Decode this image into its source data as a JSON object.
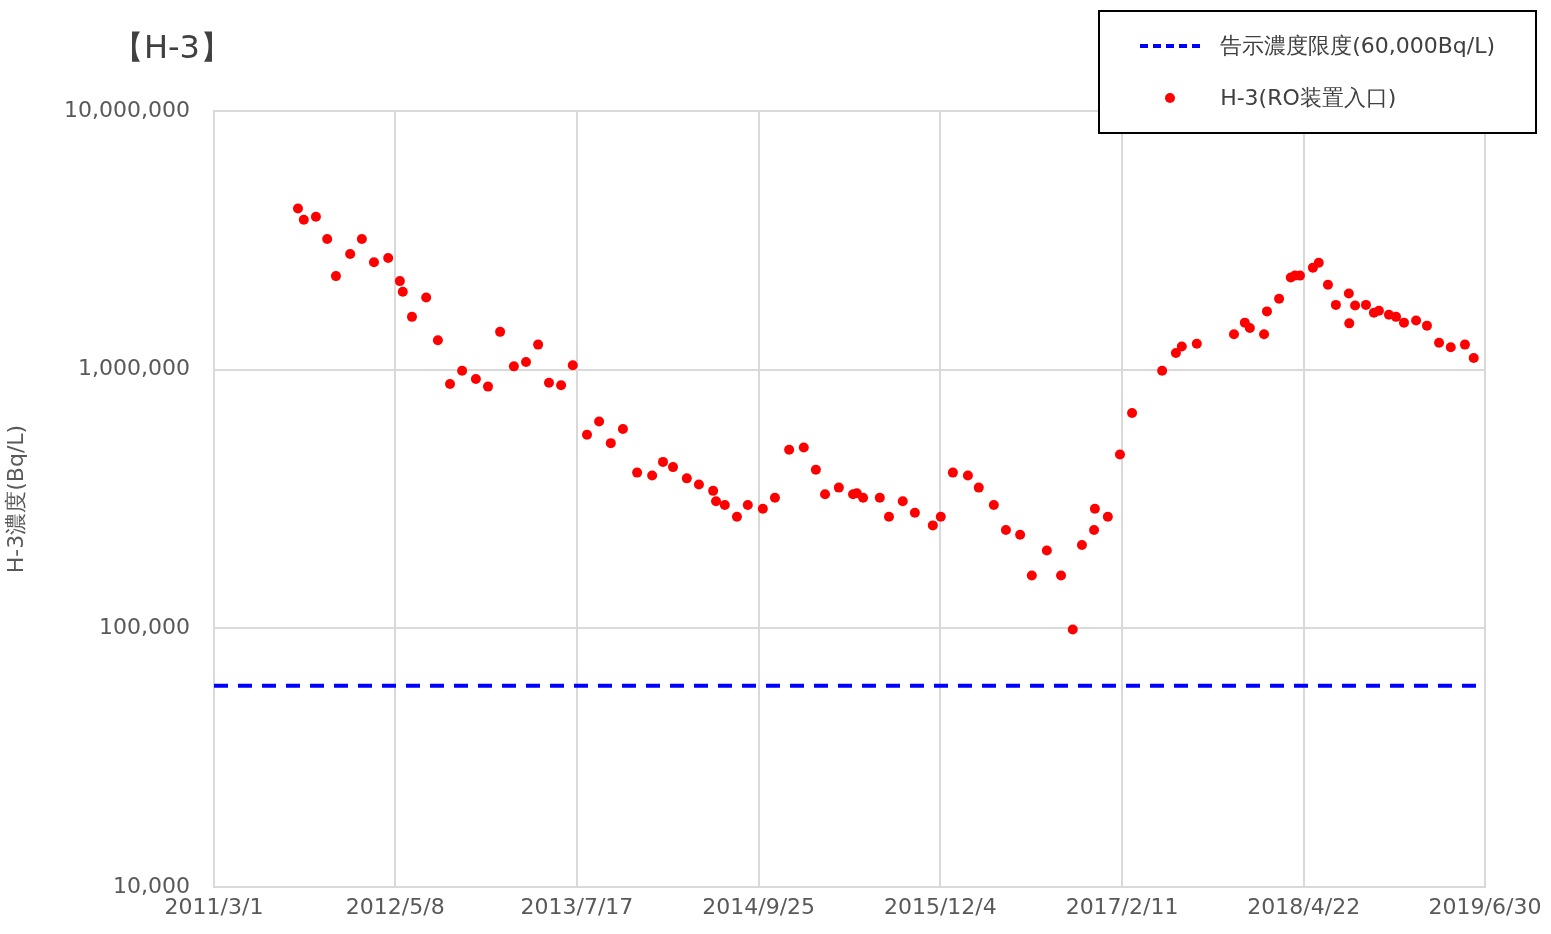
{
  "chart_data": {
    "type": "scatter",
    "title": "【H-3】",
    "ylabel": "H-3濃度(Bq/L)",
    "x": [
      "2011-09-18",
      "2011-10-02",
      "2011-10-31",
      "2011-11-27",
      "2011-12-18",
      "2012-01-21",
      "2012-02-18",
      "2012-03-18",
      "2012-04-21",
      "2012-05-19",
      "2012-05-26",
      "2012-06-17",
      "2012-07-21",
      "2012-08-18",
      "2012-09-16",
      "2012-10-15",
      "2012-11-17",
      "2012-12-16",
      "2013-01-14",
      "2013-02-16",
      "2013-03-17",
      "2013-04-15",
      "2013-05-11",
      "2013-06-09",
      "2013-07-07",
      "2013-08-10",
      "2013-09-08",
      "2013-10-06",
      "2013-11-04",
      "2013-12-08",
      "2014-01-13",
      "2014-02-08",
      "2014-03-04",
      "2014-04-06",
      "2014-05-05",
      "2014-06-08",
      "2014-06-15",
      "2014-07-06",
      "2014-08-04",
      "2014-08-30",
      "2014-10-05",
      "2014-11-03",
      "2014-12-07",
      "2015-01-11",
      "2015-02-09",
      "2015-03-03",
      "2015-04-05",
      "2015-05-09",
      "2015-05-18",
      "2015-06-02",
      "2015-07-12",
      "2015-08-03",
      "2015-09-05",
      "2015-10-04",
      "2015-11-16",
      "2015-12-05",
      "2016-01-03",
      "2016-02-08",
      "2016-03-05",
      "2016-04-10",
      "2016-05-09",
      "2016-06-12",
      "2016-07-10",
      "2016-08-15",
      "2016-09-18",
      "2016-10-16",
      "2016-11-07",
      "2016-12-06",
      "2016-12-08",
      "2017-01-08",
      "2017-02-06",
      "2017-03-07",
      "2017-05-18",
      "2017-06-20",
      "2017-07-04",
      "2017-08-09",
      "2017-11-06",
      "2017-12-02",
      "2017-12-14",
      "2018-01-17",
      "2018-01-24",
      "2018-02-22",
      "2018-03-22",
      "2018-04-01",
      "2018-04-13",
      "2018-05-14",
      "2018-05-28",
      "2018-06-19",
      "2018-07-08",
      "2018-08-08",
      "2018-08-09",
      "2018-08-23",
      "2018-09-18",
      "2018-10-07",
      "2018-10-19",
      "2018-11-12",
      "2018-11-29",
      "2018-12-18",
      "2019-01-16",
      "2019-02-11",
      "2019-03-12",
      "2019-04-09",
      "2019-05-13",
      "2019-06-03"
    ],
    "series": [
      {
        "name": "H-3(RO装置入口)",
        "color": "#ff0000",
        "values": [
          4200000,
          3800000,
          3900000,
          3200000,
          2300000,
          2800000,
          3200000,
          2600000,
          2700000,
          2200000,
          2000000,
          1600000,
          1900000,
          1300000,
          880000,
          990000,
          920000,
          860000,
          1400000,
          1030000,
          1070000,
          1250000,
          890000,
          870000,
          1040000,
          560000,
          630000,
          520000,
          590000,
          400000,
          390000,
          440000,
          420000,
          380000,
          360000,
          340000,
          310000,
          300000,
          270000,
          300000,
          290000,
          320000,
          490000,
          500000,
          410000,
          330000,
          350000,
          330000,
          333000,
          320000,
          320000,
          270000,
          310000,
          280000,
          250000,
          270000,
          400000,
          390000,
          350000,
          300000,
          240000,
          230000,
          160000,
          200000,
          160000,
          99000,
          210000,
          240000,
          290000,
          270000,
          470000,
          680000,
          990000,
          1160000,
          1230000,
          1260000,
          1370000,
          1520000,
          1450000,
          1370000,
          1680000,
          1880000,
          2270000,
          2310000,
          2310000,
          2480000,
          2590000,
          2130000,
          1780000,
          1970000,
          1510000,
          1770000,
          1780000,
          1660000,
          1690000,
          1630000,
          1600000,
          1520000,
          1550000,
          1480000,
          1270000,
          1220000,
          1250000,
          1110000
        ]
      }
    ],
    "ref_lines": [
      {
        "axis": "y",
        "value": 60000,
        "label": "告示濃度限度(60,000Bq/L)",
        "color": "#0000ff",
        "line_style": "dashed"
      }
    ],
    "xlim": [
      "2011-03-01",
      "2019-06-30"
    ],
    "xticks": [
      {
        "value": "2011-03-01",
        "label": "2011/3/1"
      },
      {
        "value": "2012-05-08",
        "label": "2012/5/8"
      },
      {
        "value": "2013-07-17",
        "label": "2013/7/17"
      },
      {
        "value": "2014-09-25",
        "label": "2014/9/25"
      },
      {
        "value": "2015-12-04",
        "label": "2015/12/4"
      },
      {
        "value": "2017-02-11",
        "label": "2017/2/11"
      },
      {
        "value": "2018-04-22",
        "label": "2018/4/22"
      },
      {
        "value": "2019-06-30",
        "label": "2019/6/30"
      }
    ],
    "ylim": [
      10000,
      10000000
    ],
    "yticks": [
      {
        "value": 10000,
        "label": "10,000"
      },
      {
        "value": 100000,
        "label": "100,000"
      },
      {
        "value": 1000000,
        "label": "1,000,000"
      },
      {
        "value": 10000000,
        "label": "10,000,000"
      }
    ],
    "log": "y",
    "grid": true,
    "legend": "top right",
    "marker": "circle"
  }
}
